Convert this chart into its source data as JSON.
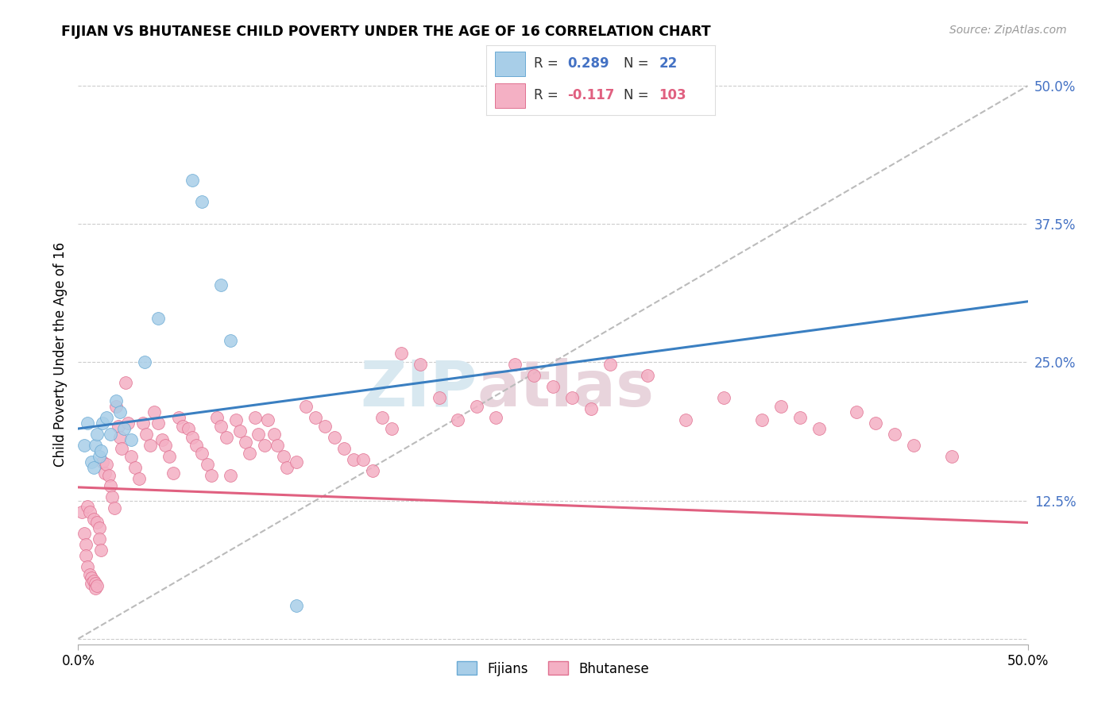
{
  "title": "FIJIAN VS BHUTANESE CHILD POVERTY UNDER THE AGE OF 16 CORRELATION CHART",
  "source": "Source: ZipAtlas.com",
  "ylabel": "Child Poverty Under the Age of 16",
  "xrange": [
    0.0,
    0.5
  ],
  "yrange": [
    -0.005,
    0.52
  ],
  "fijian_color": "#A8CEE8",
  "bhutanese_color": "#F4B0C4",
  "fijian_edge_color": "#6AAAD4",
  "bhutanese_edge_color": "#E07090",
  "fijian_line_color": "#3A7FC1",
  "bhutanese_line_color": "#E06080",
  "ref_line_color": "#BBBBBB",
  "fijian_r": "0.289",
  "fijian_n": "22",
  "bhutanese_r": "-0.117",
  "bhutanese_n": "103",
  "blue_line_x0": 0.0,
  "blue_line_y0": 0.19,
  "blue_line_x1": 0.5,
  "blue_line_y1": 0.305,
  "pink_line_x0": 0.0,
  "pink_line_y0": 0.137,
  "pink_line_x1": 0.5,
  "pink_line_y1": 0.105,
  "fijian_x": [
    0.003,
    0.005,
    0.007,
    0.008,
    0.009,
    0.01,
    0.011,
    0.012,
    0.013,
    0.015,
    0.017,
    0.02,
    0.022,
    0.024,
    0.028,
    0.035,
    0.042,
    0.06,
    0.065,
    0.075,
    0.08,
    0.115
  ],
  "fijian_y": [
    0.175,
    0.195,
    0.16,
    0.155,
    0.175,
    0.185,
    0.165,
    0.17,
    0.195,
    0.2,
    0.185,
    0.215,
    0.205,
    0.19,
    0.18,
    0.25,
    0.29,
    0.415,
    0.395,
    0.32,
    0.27,
    0.03
  ],
  "bhutanese_x": [
    0.002,
    0.003,
    0.004,
    0.004,
    0.005,
    0.005,
    0.006,
    0.006,
    0.007,
    0.007,
    0.008,
    0.008,
    0.009,
    0.009,
    0.01,
    0.01,
    0.011,
    0.011,
    0.012,
    0.013,
    0.014,
    0.015,
    0.016,
    0.017,
    0.018,
    0.019,
    0.02,
    0.021,
    0.022,
    0.023,
    0.025,
    0.026,
    0.028,
    0.03,
    0.032,
    0.034,
    0.036,
    0.038,
    0.04,
    0.042,
    0.044,
    0.046,
    0.048,
    0.05,
    0.053,
    0.055,
    0.058,
    0.06,
    0.062,
    0.065,
    0.068,
    0.07,
    0.073,
    0.075,
    0.078,
    0.08,
    0.083,
    0.085,
    0.088,
    0.09,
    0.093,
    0.095,
    0.098,
    0.1,
    0.103,
    0.105,
    0.108,
    0.11,
    0.115,
    0.12,
    0.125,
    0.13,
    0.135,
    0.14,
    0.145,
    0.15,
    0.155,
    0.16,
    0.165,
    0.17,
    0.18,
    0.19,
    0.2,
    0.21,
    0.22,
    0.23,
    0.24,
    0.25,
    0.26,
    0.27,
    0.28,
    0.3,
    0.32,
    0.34,
    0.36,
    0.37,
    0.38,
    0.39,
    0.41,
    0.42,
    0.43,
    0.44,
    0.46
  ],
  "bhutanese_y": [
    0.115,
    0.095,
    0.085,
    0.075,
    0.12,
    0.065,
    0.115,
    0.058,
    0.055,
    0.05,
    0.108,
    0.052,
    0.05,
    0.046,
    0.105,
    0.048,
    0.1,
    0.09,
    0.08,
    0.16,
    0.15,
    0.158,
    0.148,
    0.138,
    0.128,
    0.118,
    0.21,
    0.192,
    0.182,
    0.172,
    0.232,
    0.195,
    0.165,
    0.155,
    0.145,
    0.195,
    0.185,
    0.175,
    0.205,
    0.195,
    0.18,
    0.175,
    0.165,
    0.15,
    0.2,
    0.192,
    0.19,
    0.182,
    0.175,
    0.168,
    0.158,
    0.148,
    0.2,
    0.192,
    0.182,
    0.148,
    0.198,
    0.188,
    0.178,
    0.168,
    0.2,
    0.185,
    0.175,
    0.198,
    0.185,
    0.175,
    0.165,
    0.155,
    0.16,
    0.21,
    0.2,
    0.192,
    0.182,
    0.172,
    0.162,
    0.162,
    0.152,
    0.2,
    0.19,
    0.258,
    0.248,
    0.218,
    0.198,
    0.21,
    0.2,
    0.248,
    0.238,
    0.228,
    0.218,
    0.208,
    0.248,
    0.238,
    0.198,
    0.218,
    0.198,
    0.21,
    0.2,
    0.19,
    0.205,
    0.195,
    0.185,
    0.175,
    0.165
  ]
}
